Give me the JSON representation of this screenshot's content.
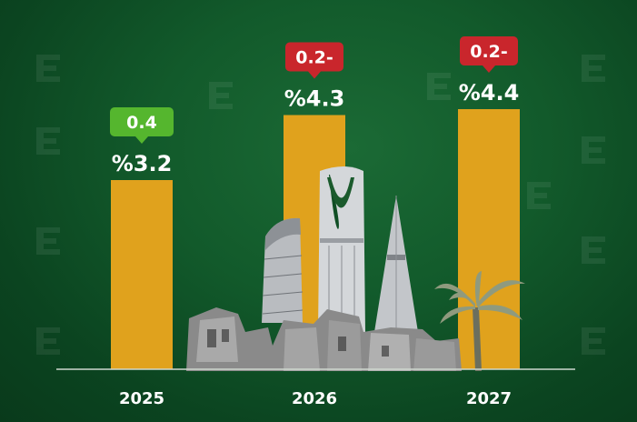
{
  "chart_data": {
    "type": "bar",
    "categories": [
      "2025",
      "2026",
      "2027"
    ],
    "values": [
      3.2,
      4.3,
      4.4
    ],
    "value_labels": [
      "%3.2",
      "%4.3",
      "%4.4"
    ],
    "changes": [
      {
        "label": "0.4",
        "direction": "up"
      },
      {
        "label": "0.2-",
        "direction": "down"
      },
      {
        "label": "0.2-",
        "direction": "down"
      }
    ],
    "title": "",
    "xlabel": "",
    "ylabel": "",
    "ylim": [
      0,
      4.4
    ],
    "grid": false,
    "legend": "none"
  },
  "colors": {
    "background": "#0d4a22",
    "bar": "#e0a21d",
    "badge_up": "#55b62e",
    "badge_down": "#c9262c",
    "axis": "#cfd8cf",
    "text": "#ffffff"
  },
  "decor": {
    "watermark_icon": "e-logo-icon",
    "skyline_icon": "riyadh-skyline-icon",
    "palm_icon": "palm-tree-icon"
  }
}
